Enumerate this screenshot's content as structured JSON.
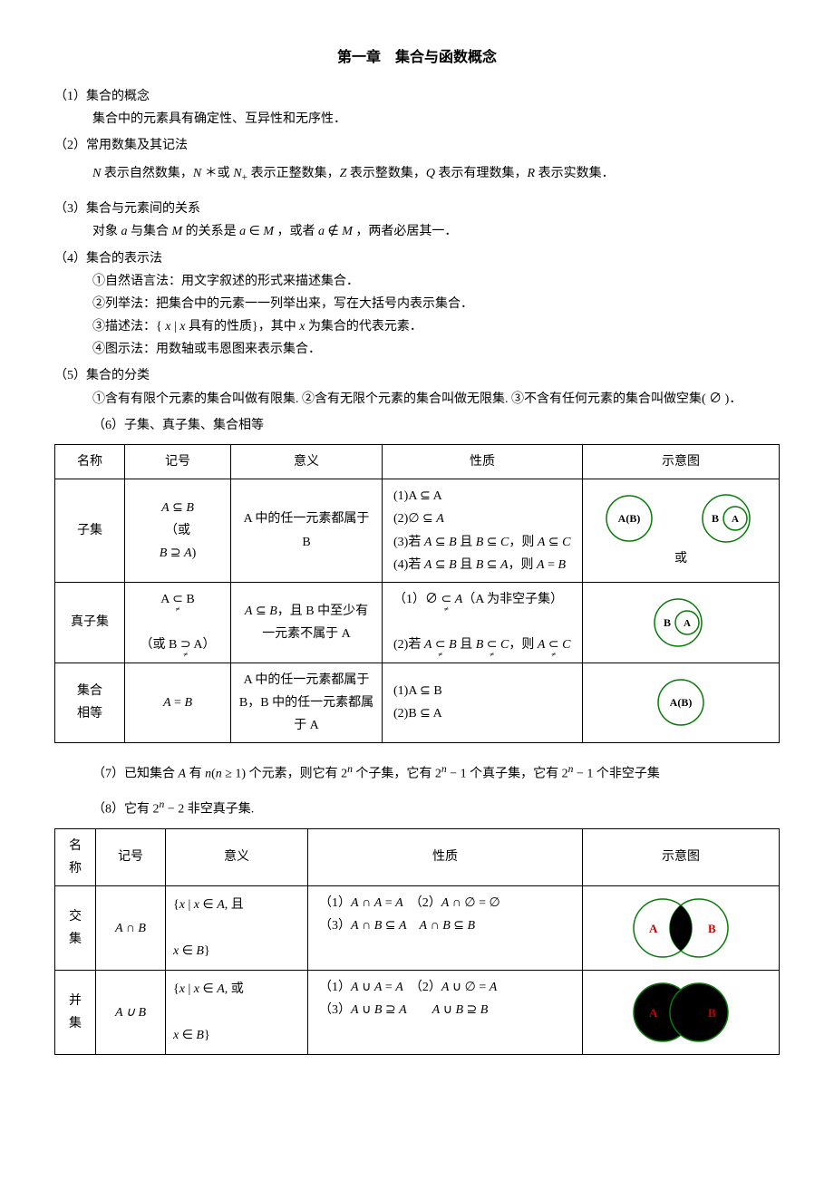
{
  "title": "第一章　集合与函数概念",
  "sections": {
    "s1": {
      "num": "（1）",
      "heading": "集合的概念",
      "body": "集合中的元素具有确定性、互异性和无序性．"
    },
    "s2": {
      "num": "（2）",
      "heading": "常用数集及其记法",
      "body_parts": {
        "p1": "N 表示自然数集，",
        "p2": "N * 或 N",
        "p2sub": "+",
        "p3": " 表示正整数集，",
        "p4": "Z 表示整数集，",
        "p5": "Q 表示有理数集，",
        "p6": "R 表示实数数集．"
      },
      "body": "N 表示自然数集，N＊或 N₊ 表示正整数集，Z 表示整数集，Q 表示有理数集，R 表示实数数集．"
    },
    "s3": {
      "num": "（3）",
      "heading": "集合与元素间的关系",
      "body": "对象 a 与集合 M 的关系是 a ∈ M ，或者 a ∉ M ，两者必居其一．"
    },
    "s4": {
      "num": "（4）",
      "heading": "集合的表示法",
      "lines": {
        "l1": "①自然语言法：用文字叙述的形式来描述集合．",
        "l2": "②列举法：把集合中的元素一一列举出来，写在大括号内表示集合．",
        "l3": "③描述法：{ x | x 具有的性质}，其中 x 为集合的代表元素．",
        "l4": "④图示法：用数轴或韦恩图来表示集合．"
      }
    },
    "s5": {
      "num": "（5）",
      "heading": "集合的分类",
      "body": "①含有有限个元素的集合叫做有限集. ②含有无限个元素的集合叫做无限集. ③不含有任何元素的集合叫做空集( ∅ )．"
    },
    "s6": {
      "num": "（6）",
      "heading": "子集、真子集、集合相等"
    },
    "s7": {
      "num": "（7）",
      "body": "已知集合 A 有 n(n ≥ 1) 个元素，则它有 2ⁿ 个子集，它有 2ⁿ − 1 个真子集，它有 2ⁿ − 1 个非空子集"
    },
    "s8": {
      "num": "（8）",
      "body": "它有 2ⁿ − 2 非空真子集."
    }
  },
  "table1": {
    "headers": {
      "c1": "名称",
      "c2": "记号",
      "c3": "意义",
      "c4": "性质",
      "c5": "示意图"
    },
    "rows": [
      {
        "name": "子集",
        "notation_html": "<span class=\"math-i\">A</span> ⊆ <span class=\"math-i\">B</span><br>（或<br><span class=\"math-i\">B</span> ⊇ <span class=\"math-i\">A</span>)",
        "meaning": "A 中的任一元素都属于 B",
        "properties": "(1)A ⊆ A<br>(2)∅ ⊆ <span class=\"math-i\">A</span><br>(3)若 <span class=\"math-i\">A</span> ⊆ <span class=\"math-i\">B</span> 且 <span class=\"math-i\">B</span> ⊆ <span class=\"math-i\">C</span>，则 <span class=\"math-i\">A</span> ⊆ <span class=\"math-i\">C</span><br>(4)若 <span class=\"math-i\">A</span> ⊆ <span class=\"math-i\">B</span> 且 <span class=\"math-i\">B</span> ⊆ <span class=\"math-i\">A</span>，则 <span class=\"math-i\">A</span> = <span class=\"math-i\">B</span>",
        "venn_type": "subset_or",
        "or_label": "或"
      },
      {
        "name": "真子集",
        "notation_html": "A <span class=\"neq\">⊂</span> B<br><br>（或 B <span class=\"neq\">⊃</span> A）",
        "meaning": "<span class=\"math-i\">A</span> ⊆ <span class=\"math-i\">B</span>，且 B 中至少有一元素不属于 A",
        "properties": "（1）∅ <span class=\"neq\">⊂</span> <span class=\"math-i\">A</span>（A 为非空子集）<br><br>(2)若 <span class=\"math-i\">A</span> <span class=\"neq\">⊂</span> <span class=\"math-i\">B</span> 且 <span class=\"math-i\">B</span> <span class=\"neq\">⊂</span> <span class=\"math-i\">C</span>，则 <span class=\"math-i\">A</span> <span class=\"neq\">⊂</span> <span class=\"math-i\">C</span>",
        "venn_type": "proper_subset"
      },
      {
        "name": "集合<br>相等",
        "notation_html": "<span class=\"math-i\">A</span> = <span class=\"math-i\">B</span>",
        "meaning": "A 中的任一元素都属于 B，B 中的任一元素都属于 A",
        "properties": "(1)A ⊆ B<br>(2)B ⊆ A",
        "venn_type": "equal"
      }
    ]
  },
  "table2": {
    "headers": {
      "c1": "名<br>称",
      "c2": "记号",
      "c3": "意义",
      "c4": "性质",
      "c5": "示意图"
    },
    "rows": [
      {
        "name": "交<br>集",
        "notation": "A ∩ B",
        "meaning": "{<span class=\"math-i\">x</span> | <span class=\"math-i\">x</span> ∈ <span class=\"math-i\">A</span>, 且<br><br><span class=\"math-i\">x</span> ∈ <span class=\"math-i\">B</span>}",
        "properties": "（1）<span class=\"math-i\">A</span> ∩ <span class=\"math-i\">A</span> = <span class=\"math-i\">A</span>　（2）<span class=\"math-i\">A</span> ∩ ∅ = ∅<br>（3）<span class=\"math-i\">A</span> ∩ <span class=\"math-i\">B</span> ⊆ <span class=\"math-i\">A</span>　<span class=\"math-i\">A</span> ∩ <span class=\"math-i\">B</span> ⊆ <span class=\"math-i\">B</span>",
        "venn_type": "intersection"
      },
      {
        "name": "并<br>集",
        "notation": "A ∪ B",
        "meaning": "{<span class=\"math-i\">x</span> | <span class=\"math-i\">x</span> ∈ <span class=\"math-i\">A</span>, 或<br><br><span class=\"math-i\">x</span> ∈ <span class=\"math-i\">B</span>}",
        "properties": "（1）<span class=\"math-i\">A</span> ∪ <span class=\"math-i\">A</span> = <span class=\"math-i\">A</span>　（2）<span class=\"math-i\">A</span> ∪ ∅ = <span class=\"math-i\">A</span><br>（3）<span class=\"math-i\">A</span> ∪ <span class=\"math-i\">B</span> ⊇ <span class=\"math-i\">A</span>　　<span class=\"math-i\">A</span> ∪ <span class=\"math-i\">B</span> ⊇ <span class=\"math-i\">B</span>",
        "venn_type": "union"
      }
    ]
  },
  "venn": {
    "stroke": "#0a7a0a",
    "label_color": "#cc0000",
    "label_A": "A",
    "label_B": "B",
    "label_AB": "A(B)"
  }
}
